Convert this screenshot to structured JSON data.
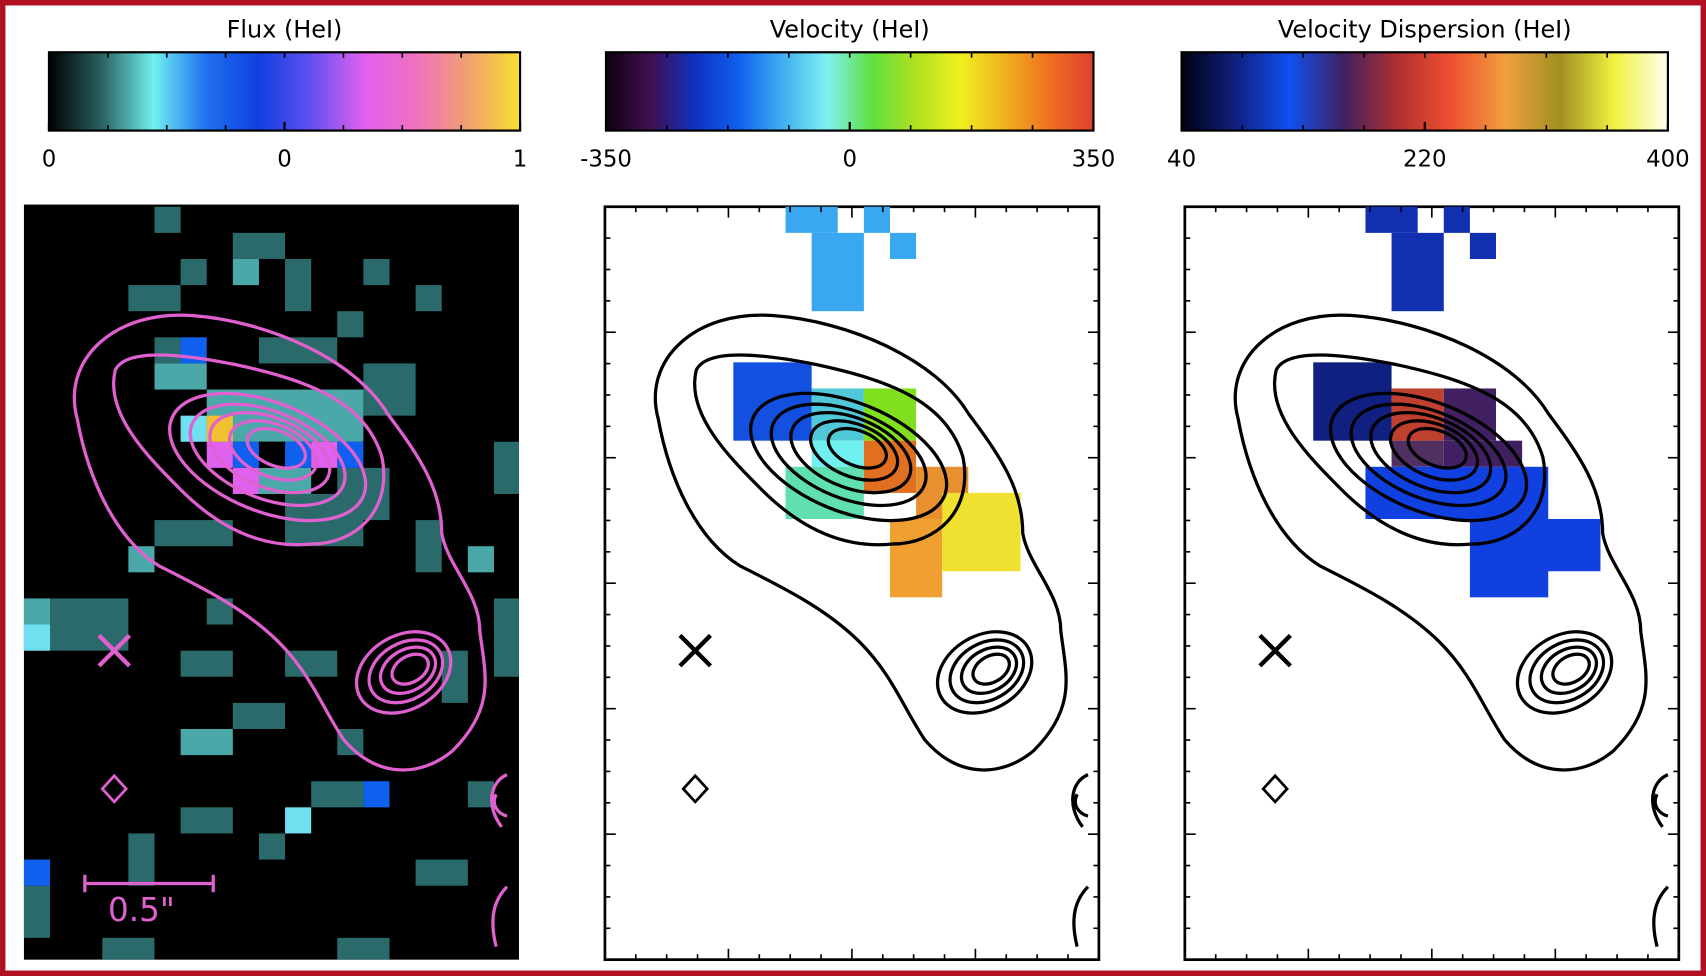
{
  "chart_data": [
    {
      "type": "colorbar",
      "title": "Flux (HeI)",
      "clim": [
        0,
        1
      ],
      "ticks": [
        0,
        {
          "value": 0.5,
          "label": "0"
        },
        1
      ],
      "colors": [
        "#000000",
        "#2a6060",
        "#70f0f0",
        "#2070f0",
        "#1040e0",
        "#6050f0",
        "#e060f0",
        "#f070c0",
        "#f0a070",
        "#f8e030"
      ]
    },
    {
      "type": "colorbar",
      "title": "Velocity (HeI)",
      "clim": [
        -350,
        350
      ],
      "ticks": [
        -350,
        0,
        350
      ],
      "colors": [
        "#100010",
        "#401050",
        "#1030c0",
        "#1060f0",
        "#40b0f0",
        "#80f0f0",
        "#60e040",
        "#b0e020",
        "#f0f020",
        "#f0b020",
        "#f07020",
        "#e04030"
      ]
    },
    {
      "type": "colorbar",
      "title": "Velocity Dispersion (HeI)",
      "clim": [
        40,
        400
      ],
      "ticks": [
        40,
        220,
        400
      ],
      "colors": [
        "#000010",
        "#102080",
        "#1050f0",
        "#402060",
        "#b03030",
        "#f05030",
        "#f0a040",
        "#a09020",
        "#f0f040",
        "#fffff0"
      ]
    }
  ],
  "annotations": {
    "scale_bar": "0.5\""
  }
}
